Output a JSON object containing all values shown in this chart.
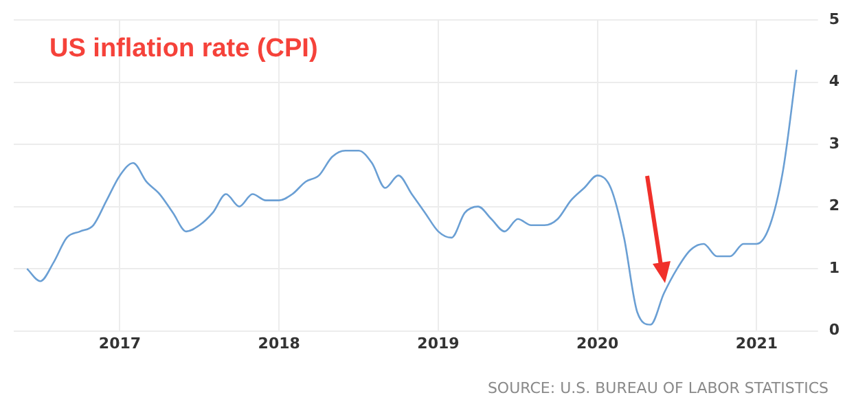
{
  "chart_data": {
    "type": "line",
    "title": "US inflation rate (CPI)",
    "annotations": [
      "SOURCE: U.S. BUREAU OF LABOR STATISTICS"
    ],
    "x": [
      "2016-06",
      "2016-07",
      "2016-08",
      "2016-09",
      "2016-10",
      "2016-11",
      "2016-12",
      "2017-01",
      "2017-02",
      "2017-03",
      "2017-04",
      "2017-05",
      "2017-06",
      "2017-07",
      "2017-08",
      "2017-09",
      "2017-10",
      "2017-11",
      "2017-12",
      "2018-01",
      "2018-02",
      "2018-03",
      "2018-04",
      "2018-05",
      "2018-06",
      "2018-07",
      "2018-08",
      "2018-09",
      "2018-10",
      "2018-11",
      "2018-12",
      "2019-01",
      "2019-02",
      "2019-03",
      "2019-04",
      "2019-05",
      "2019-06",
      "2019-07",
      "2019-08",
      "2019-09",
      "2019-10",
      "2019-11",
      "2019-12",
      "2020-01",
      "2020-02",
      "2020-03",
      "2020-04",
      "2020-05",
      "2020-06",
      "2020-07",
      "2020-08",
      "2020-09",
      "2020-10",
      "2020-11",
      "2020-12",
      "2021-01",
      "2021-02",
      "2021-03",
      "2021-04"
    ],
    "series": [
      {
        "color": "#6a9fd4",
        "values": [
          1.0,
          0.8,
          1.1,
          1.5,
          1.6,
          1.7,
          2.1,
          2.5,
          2.7,
          2.4,
          2.2,
          1.9,
          1.6,
          1.7,
          1.9,
          2.2,
          2.0,
          2.2,
          2.1,
          2.1,
          2.2,
          2.4,
          2.5,
          2.8,
          2.9,
          2.9,
          2.7,
          2.3,
          2.5,
          2.2,
          1.9,
          1.6,
          1.5,
          1.9,
          2.0,
          1.8,
          1.6,
          1.8,
          1.7,
          1.7,
          1.8,
          2.1,
          2.3,
          2.5,
          2.3,
          1.5,
          0.3,
          0.1,
          0.6,
          1.0,
          1.3,
          1.4,
          1.2,
          1.2,
          1.4,
          1.4,
          1.7,
          2.6,
          4.2
        ]
      }
    ],
    "xlim": [
      "2016-05",
      "2021-05"
    ],
    "xticks": [
      "2017",
      "2018",
      "2019",
      "2020",
      "2021"
    ],
    "ylim": [
      0,
      5
    ],
    "yticks": [
      0,
      1,
      2,
      3,
      4,
      5
    ],
    "grid": true,
    "marker": "none",
    "line_style": "solid"
  }
}
